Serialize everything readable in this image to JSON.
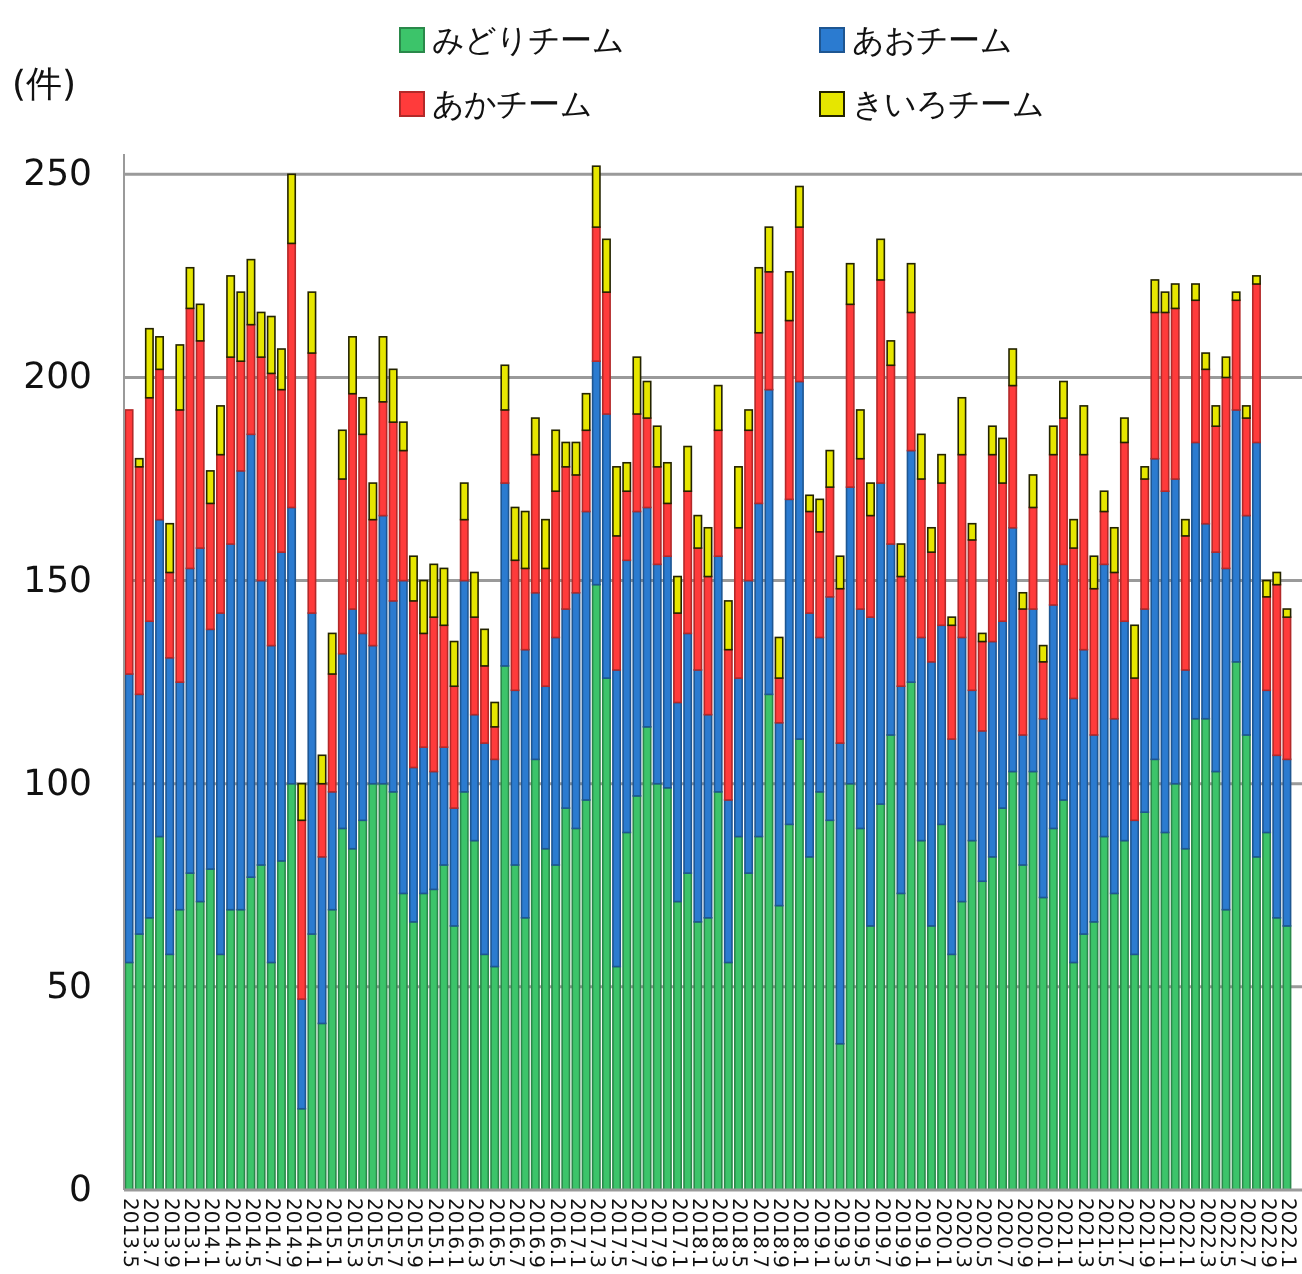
{
  "chart_data": {
    "type": "bar",
    "stacked": true,
    "ylabel": "(件)",
    "ylim": [
      0,
      255
    ],
    "yticks": [
      0,
      50,
      100,
      150,
      200,
      250
    ],
    "grid": "y",
    "legend": "top",
    "categories": [
      "2013.5",
      null,
      "2013.7",
      null,
      "2013.9",
      null,
      "2013.1",
      null,
      "2014.1",
      null,
      "2014.3",
      null,
      "2014.5",
      null,
      "2014.7",
      null,
      "2014.9",
      null,
      "2014.1",
      null,
      "2015.1",
      null,
      "2015.3",
      null,
      "2015.5",
      null,
      "2015.7",
      null,
      "2015.9",
      null,
      "2015.1",
      null,
      "2016.1",
      null,
      "2016.3",
      null,
      "2016.5",
      null,
      "2016.7",
      null,
      "2016.9",
      null,
      "2016.1",
      null,
      "2017.1",
      null,
      "2017.3",
      null,
      "2017.5",
      null,
      "2017.7",
      null,
      "2017.9",
      null,
      "2017.1",
      null,
      "2018.1",
      null,
      "2018.3",
      null,
      "2018.5",
      null,
      "2018.7",
      null,
      "2018.9",
      null,
      "2018.1",
      null,
      "2019.1",
      null,
      "2019.3",
      null,
      "2019.5",
      null,
      "2019.7",
      null,
      "2019.9",
      null,
      "2019.1",
      null,
      "2020.1",
      null,
      "2020.3",
      null,
      "2020.5",
      null,
      "2020.7",
      null,
      "2020.9",
      null,
      "2020.1",
      null,
      "2021.1",
      null,
      "2021.3",
      null,
      "2021.5",
      null,
      "2021.7",
      null,
      "2021.9",
      null,
      "2021.1",
      null,
      "2022.1",
      null,
      "2022.3",
      null,
      "2022.5",
      null,
      "2022.7",
      null,
      "2022.9",
      null,
      "2022.1"
    ],
    "series": [
      {
        "name": "みどりチーム",
        "color": "#3cc46a",
        "values": [
          56,
          63,
          67,
          87,
          58,
          69,
          78,
          71,
          79,
          58,
          69,
          69,
          77,
          80,
          56,
          81,
          100,
          20,
          63,
          41,
          69,
          89,
          84,
          91,
          100,
          100,
          98,
          73,
          66,
          73,
          74,
          80,
          65,
          98,
          86,
          58,
          55,
          129,
          80,
          67,
          106,
          84,
          80,
          94,
          89,
          96,
          149,
          126,
          55,
          88,
          97,
          114,
          100,
          99,
          71,
          78,
          66,
          67,
          98,
          56,
          87,
          78,
          87,
          122,
          70,
          90,
          111,
          82,
          98,
          91,
          36,
          100,
          89,
          65,
          95,
          112,
          73,
          125,
          86,
          65,
          90,
          58,
          71,
          86,
          76,
          82,
          94,
          103,
          80,
          103,
          72,
          89,
          96,
          56,
          63,
          66,
          87,
          73,
          86,
          58,
          93,
          106,
          88,
          100,
          84,
          116,
          116,
          103,
          69,
          130,
          112,
          82,
          88,
          67,
          65
        ]
      },
      {
        "name": "あおチーム",
        "color": "#2b7bd0",
        "values": [
          71,
          59,
          73,
          78,
          73,
          56,
          75,
          87,
          59,
          84,
          90,
          108,
          109,
          70,
          78,
          76,
          68,
          27,
          79,
          41,
          29,
          43,
          59,
          46,
          34,
          66,
          47,
          77,
          38,
          36,
          29,
          29,
          29,
          52,
          31,
          52,
          51,
          45,
          43,
          66,
          41,
          40,
          56,
          49,
          58,
          71,
          55,
          65,
          73,
          67,
          70,
          54,
          54,
          57,
          49,
          59,
          62,
          50,
          58,
          40,
          39,
          72,
          82,
          75,
          45,
          80,
          88,
          60,
          38,
          55,
          74,
          73,
          54,
          76,
          79,
          47,
          51,
          57,
          50,
          65,
          49,
          53,
          65,
          37,
          37,
          53,
          46,
          60,
          32,
          40,
          44,
          55,
          58,
          65,
          70,
          46,
          67,
          43,
          54,
          33,
          50,
          74,
          84,
          75,
          44,
          68,
          48,
          54,
          84,
          62,
          54,
          102,
          35,
          40,
          41
        ]
      },
      {
        "name": "あかチーム",
        "color": "#ff3b3b",
        "values": [
          65,
          56,
          55,
          37,
          21,
          67,
          64,
          51,
          31,
          39,
          46,
          27,
          27,
          55,
          67,
          40,
          65,
          44,
          64,
          18,
          29,
          43,
          53,
          49,
          31,
          28,
          44,
          32,
          41,
          28,
          38,
          30,
          30,
          15,
          24,
          19,
          8,
          18,
          32,
          20,
          34,
          29,
          36,
          35,
          29,
          20,
          33,
          30,
          33,
          17,
          24,
          22,
          24,
          13,
          22,
          35,
          30,
          34,
          31,
          37,
          37,
          37,
          42,
          29,
          11,
          44,
          38,
          25,
          26,
          27,
          38,
          45,
          37,
          25,
          50,
          44,
          27,
          34,
          39,
          27,
          35,
          28,
          45,
          37,
          22,
          46,
          34,
          35,
          31,
          25,
          14,
          37,
          36,
          37,
          48,
          36,
          13,
          36,
          44,
          35,
          32,
          36,
          44,
          42,
          33,
          35,
          38,
          31,
          47,
          27,
          24,
          39,
          23,
          42,
          35
        ]
      },
      {
        "name": "きいろチーム",
        "color": "#e6e600",
        "values": [
          0,
          2,
          17,
          8,
          12,
          16,
          10,
          9,
          8,
          12,
          20,
          17,
          16,
          11,
          14,
          10,
          17,
          9,
          15,
          7,
          10,
          12,
          14,
          9,
          9,
          16,
          13,
          7,
          11,
          13,
          13,
          14,
          11,
          9,
          11,
          9,
          6,
          11,
          13,
          14,
          9,
          12,
          15,
          6,
          8,
          9,
          15,
          13,
          17,
          7,
          14,
          9,
          10,
          10,
          9,
          11,
          8,
          12,
          11,
          12,
          15,
          5,
          16,
          11,
          10,
          12,
          10,
          4,
          8,
          9,
          8,
          10,
          12,
          8,
          10,
          6,
          8,
          12,
          11,
          6,
          7,
          2,
          14,
          4,
          2,
          7,
          11,
          9,
          4,
          8,
          4,
          7,
          9,
          7,
          12,
          8,
          5,
          11,
          6,
          13,
          3,
          8,
          5,
          6,
          4,
          4,
          4,
          5,
          5,
          2,
          3,
          2,
          4,
          3,
          2
        ]
      }
    ]
  }
}
